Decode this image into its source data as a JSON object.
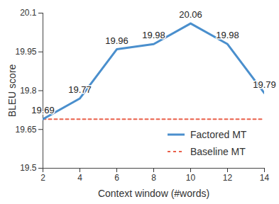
{
  "chart_data": {
    "type": "line",
    "x_label": "Context window (#words)",
    "y_label": "BLEU score",
    "x": [
      2,
      4,
      6,
      8,
      10,
      12,
      14
    ],
    "series": [
      {
        "name": "Factored MT",
        "color": "#4a8fcd",
        "line_style": "solid",
        "data_labels": true,
        "values": [
          19.69,
          19.77,
          19.96,
          19.98,
          20.06,
          19.98,
          19.79
        ]
      },
      {
        "name": "Baseline MT",
        "color": "#e9604a",
        "line_style": "dashed",
        "values": [
          19.69,
          19.69,
          19.69,
          19.69,
          19.69,
          19.69,
          19.69
        ]
      }
    ],
    "xlim": [
      2,
      14
    ],
    "xticks": [
      2,
      4,
      6,
      8,
      10,
      12,
      14
    ],
    "ylim": [
      19.5,
      20.1
    ],
    "yticks": [
      19.5,
      19.65,
      19.8,
      19.95,
      20.1
    ],
    "grid": false,
    "legend": "bottom-right"
  }
}
